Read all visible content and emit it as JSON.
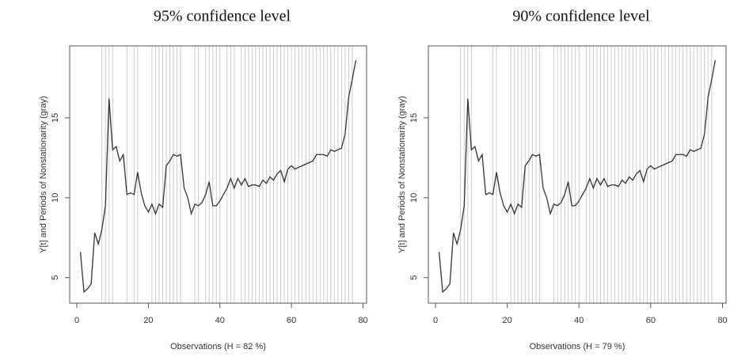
{
  "chart_data": [
    {
      "type": "line",
      "title": "95% confidence level",
      "xlabel": "Observations  (H =  82 %)",
      "ylabel": "Y[t] and Periods of Nonstationarity (gray)",
      "x": [
        1,
        2,
        3,
        4,
        5,
        6,
        7,
        8,
        9,
        10,
        11,
        12,
        13,
        14,
        15,
        16,
        17,
        18,
        19,
        20,
        21,
        22,
        23,
        24,
        25,
        26,
        27,
        28,
        29,
        30,
        31,
        32,
        33,
        34,
        35,
        36,
        37,
        38,
        39,
        40,
        41,
        42,
        43,
        44,
        45,
        46,
        47,
        48,
        49,
        50,
        51,
        52,
        53,
        54,
        55,
        56,
        57,
        58,
        59,
        60,
        61,
        62,
        63,
        64,
        65,
        66,
        67,
        68,
        69,
        70,
        71,
        72,
        73,
        74,
        75,
        76,
        77,
        78
      ],
      "values": [
        6.6,
        4.1,
        4.3,
        4.6,
        7.8,
        7.1,
        8.0,
        9.5,
        16.2,
        13.0,
        13.2,
        12.3,
        12.7,
        10.2,
        10.3,
        10.2,
        11.6,
        10.3,
        9.5,
        9.1,
        9.6,
        9.0,
        9.6,
        9.4,
        12.0,
        12.3,
        12.7,
        12.6,
        12.7,
        10.6,
        10.0,
        9.0,
        9.6,
        9.5,
        9.7,
        10.2,
        11.0,
        9.5,
        9.5,
        9.8,
        10.2,
        10.6,
        11.2,
        10.6,
        11.2,
        10.8,
        11.2,
        10.7,
        10.8,
        10.8,
        10.7,
        11.1,
        10.9,
        11.3,
        11.1,
        11.5,
        11.7,
        11.0,
        11.8,
        12.0,
        11.8,
        11.9,
        12.0,
        12.1,
        12.2,
        12.3,
        12.7,
        12.7,
        12.7,
        12.6,
        13.0,
        12.9,
        13.0,
        13.1,
        14.0,
        16.3,
        17.4,
        18.6
      ],
      "nonstationary_periods": [
        7,
        8,
        9,
        10,
        14,
        16,
        17,
        21,
        22,
        23,
        24,
        25,
        26,
        27,
        28,
        29,
        33,
        34,
        36,
        37,
        38,
        39,
        40,
        42,
        43,
        44,
        46,
        47,
        48,
        49,
        50,
        51,
        52,
        53,
        54,
        55,
        56,
        57,
        58,
        59,
        60,
        61,
        62,
        63,
        64,
        65,
        66,
        67,
        68,
        69,
        70,
        71,
        72,
        73,
        74,
        75,
        76,
        77
      ],
      "xlim": [
        -2,
        81
      ],
      "ylim": [
        3.4,
        19.5
      ],
      "xticks": [
        0,
        20,
        40,
        60,
        80
      ],
      "yticks": [
        5,
        10,
        15
      ],
      "color": "#333333",
      "period_color": "#cccccc"
    },
    {
      "type": "line",
      "title": "90% confidence level",
      "xlabel": "Observations  (H =  79 %)",
      "ylabel": "Y[t] and Periods of Nonstationarity (gray)",
      "x": [
        1,
        2,
        3,
        4,
        5,
        6,
        7,
        8,
        9,
        10,
        11,
        12,
        13,
        14,
        15,
        16,
        17,
        18,
        19,
        20,
        21,
        22,
        23,
        24,
        25,
        26,
        27,
        28,
        29,
        30,
        31,
        32,
        33,
        34,
        35,
        36,
        37,
        38,
        39,
        40,
        41,
        42,
        43,
        44,
        45,
        46,
        47,
        48,
        49,
        50,
        51,
        52,
        53,
        54,
        55,
        56,
        57,
        58,
        59,
        60,
        61,
        62,
        63,
        64,
        65,
        66,
        67,
        68,
        69,
        70,
        71,
        72,
        73,
        74,
        75,
        76,
        77,
        78
      ],
      "values": [
        6.6,
        4.1,
        4.3,
        4.6,
        7.8,
        7.1,
        8.0,
        9.5,
        16.2,
        13.0,
        13.2,
        12.3,
        12.7,
        10.2,
        10.3,
        10.2,
        11.6,
        10.3,
        9.5,
        9.1,
        9.6,
        9.0,
        9.6,
        9.4,
        12.0,
        12.3,
        12.7,
        12.6,
        12.7,
        10.6,
        10.0,
        9.0,
        9.6,
        9.5,
        9.7,
        10.2,
        11.0,
        9.5,
        9.5,
        9.8,
        10.2,
        10.6,
        11.2,
        10.6,
        11.2,
        10.8,
        11.2,
        10.7,
        10.8,
        10.8,
        10.7,
        11.1,
        10.9,
        11.3,
        11.1,
        11.5,
        11.7,
        11.0,
        11.8,
        12.0,
        11.8,
        11.9,
        12.0,
        12.1,
        12.2,
        12.3,
        12.7,
        12.7,
        12.7,
        12.6,
        13.0,
        12.9,
        13.0,
        13.1,
        14.0,
        16.3,
        17.4,
        18.6
      ],
      "nonstationary_periods": [
        7,
        8,
        9,
        10,
        16,
        17,
        21,
        22,
        23,
        24,
        25,
        26,
        27,
        28,
        29,
        33,
        34,
        35,
        36,
        37,
        38,
        39,
        40,
        42,
        43,
        44,
        45,
        46,
        47,
        48,
        49,
        50,
        51,
        52,
        53,
        54,
        55,
        56,
        57,
        58,
        59,
        60,
        61,
        62,
        63,
        64,
        65,
        66,
        67,
        68,
        69,
        70,
        71,
        72,
        73,
        74,
        75,
        76,
        77
      ],
      "xlim": [
        -2,
        81
      ],
      "ylim": [
        3.4,
        19.5
      ],
      "xticks": [
        0,
        20,
        40,
        60,
        80
      ],
      "yticks": [
        5,
        10,
        15
      ],
      "color": "#333333",
      "period_color": "#cccccc"
    }
  ]
}
